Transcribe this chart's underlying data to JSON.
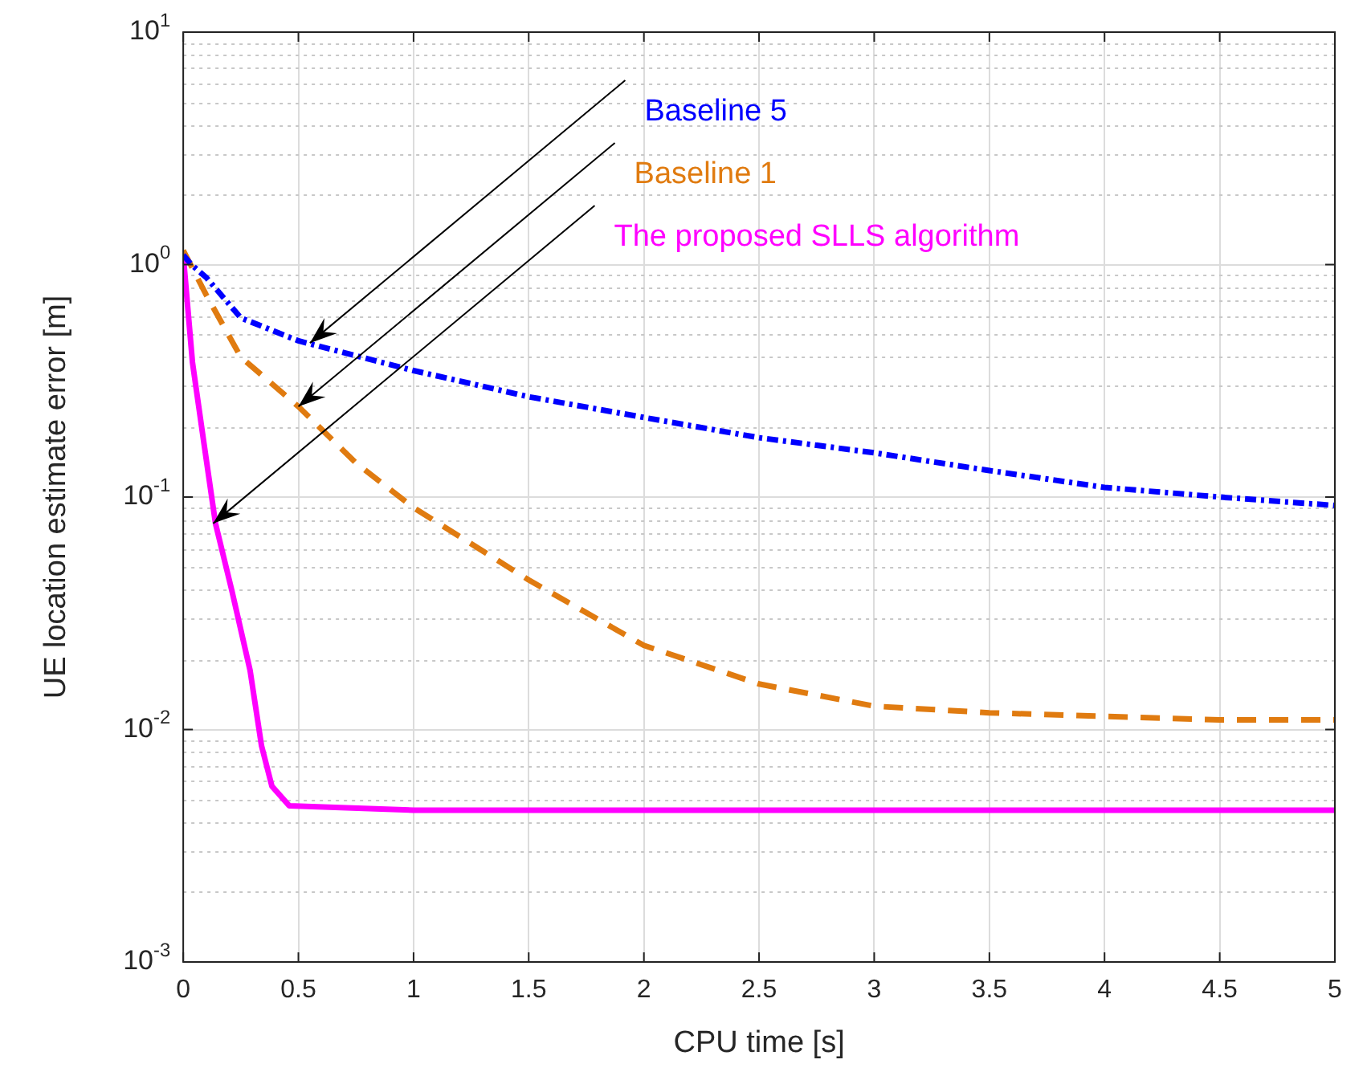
{
  "chart_data": {
    "type": "line",
    "xlabel": "CPU time [s]",
    "ylabel": "UE location estimate error [m]",
    "log": "y",
    "grid": true,
    "legend": false,
    "xlim": [
      0,
      5
    ],
    "xticks": [
      0,
      0.5,
      1,
      1.5,
      2,
      2.5,
      3,
      3.5,
      4,
      4.5,
      5
    ],
    "ylim": [
      0.001,
      10
    ],
    "yticks": [
      {
        "value": 0.001,
        "label": "10$^{-3}$"
      },
      {
        "value": 0.01,
        "label": "10$^{-2}$"
      },
      {
        "value": 0.1,
        "label": "10$^{-1}$"
      },
      {
        "value": 1,
        "label": "10$^{0}$"
      },
      {
        "value": 10,
        "label": "10$^{1}$"
      }
    ],
    "series": [
      {
        "color": "#0000ff",
        "line_style": "dotted",
        "x": [
          0,
          0.035,
          0.1,
          0.25,
          0.5,
          1,
          1.5,
          2,
          2.5,
          3,
          3.5,
          4,
          4.5,
          5
        ],
        "values": [
          1.1,
          1.0,
          0.88,
          0.59,
          0.47,
          0.35,
          0.27,
          0.22,
          0.18,
          0.155,
          0.13,
          0.11,
          0.1,
          0.092
        ]
      },
      {
        "color": "#e07b10",
        "line_style": "dashed",
        "x": [
          0,
          0.1,
          0.25,
          0.5,
          0.75,
          1,
          1.5,
          2,
          2.5,
          3,
          3.5,
          4,
          4.5,
          5
        ],
        "values": [
          1.15,
          0.74,
          0.4,
          0.245,
          0.14,
          0.09,
          0.044,
          0.023,
          0.0157,
          0.0126,
          0.0118,
          0.0114,
          0.011,
          0.011
        ]
      },
      {
        "color": "#ff00ff",
        "line_style": "solid",
        "x": [
          0,
          0.04,
          0.09,
          0.14,
          0.21,
          0.29,
          0.34,
          0.385,
          0.46,
          1,
          2,
          3,
          4,
          5
        ],
        "values": [
          1.1,
          0.38,
          0.17,
          0.077,
          0.04,
          0.018,
          0.0085,
          0.0057,
          0.0047,
          0.0045,
          0.0045,
          0.0045,
          0.0045,
          0.0045
        ]
      }
    ],
    "annotations": [
      {
        "text": "Baseline 5",
        "x": 0.55,
        "y": 0.46
      },
      {
        "text": "Baseline 1",
        "x": 0.5,
        "y": 0.245
      },
      {
        "text": "The proposed SLLS algorithm",
        "x": 0.13,
        "y": 0.077
      }
    ]
  }
}
